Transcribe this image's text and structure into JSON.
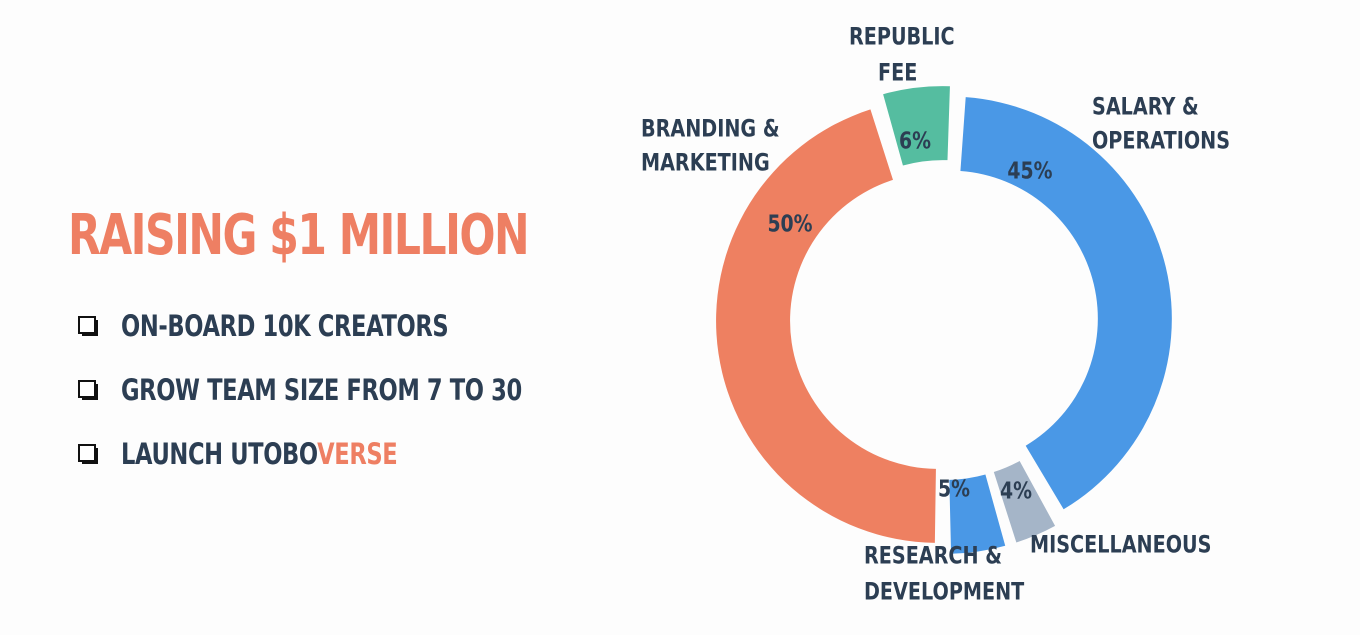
{
  "headline": "RAISING $1 MILLION",
  "goals": [
    {
      "text": "ON-BOARD 10K CREATORS",
      "accent": ""
    },
    {
      "text": "GROW TEAM SIZE FROM 7 TO 30",
      "accent": ""
    },
    {
      "text": "LAUNCH UTOBO",
      "accent": "VERSE"
    }
  ],
  "colors": {
    "accent": "#ee7f63",
    "text": "#2c3e53"
  },
  "chart_data": {
    "type": "pie",
    "style": "donut",
    "title": "",
    "slices": [
      {
        "label": "SALARY & OPERATIONS",
        "label_lines": [
          "SALARY &",
          "OPERATIONS"
        ],
        "value": 45,
        "value_label": "45%",
        "color": "#4a98e6"
      },
      {
        "label": "MISCELLANEOUS",
        "label_lines": [
          "MISCELLANEOUS"
        ],
        "value": 4,
        "value_label": "4%",
        "color": "#a5b5c8"
      },
      {
        "label": "RESEARCH & DEVELOPMENT",
        "label_lines": [
          "RESEARCH &",
          "DEVELOPMENT"
        ],
        "value": 5,
        "value_label": "5%",
        "color": "#4a98e6"
      },
      {
        "label": "BRANDING & MARKETING",
        "label_lines": [
          "BRANDING &",
          "MARKETING"
        ],
        "value": 50,
        "value_label": "50%",
        "color": "#ee8061"
      },
      {
        "label": "REPUBLIC FEE",
        "label_lines": [
          "REPUBLIC",
          "FEE"
        ],
        "value": 6,
        "value_label": "6%",
        "color": "#55bda0"
      }
    ]
  }
}
